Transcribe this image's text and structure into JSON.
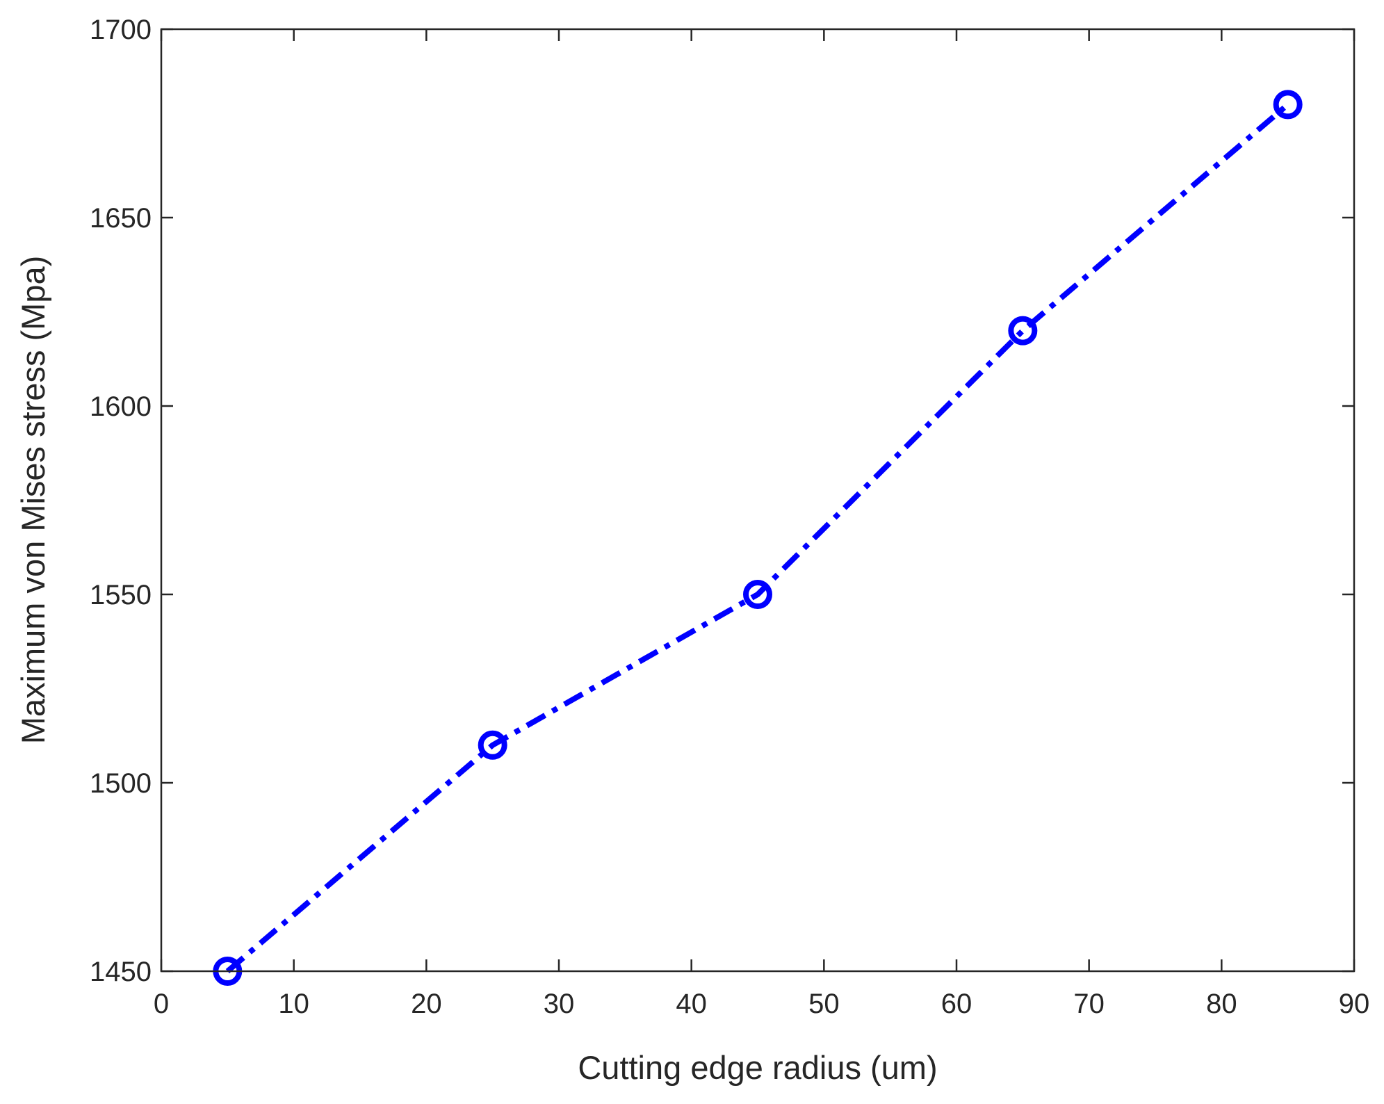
{
  "chart_data": {
    "type": "line",
    "title": "",
    "xlabel": "Cutting edge radius (um)",
    "ylabel": "Maximum von Mises stress (Mpa)",
    "xlim": [
      0,
      90
    ],
    "ylim": [
      1450,
      1700
    ],
    "xticks": [
      "0",
      "10",
      "20",
      "30",
      "40",
      "50",
      "60",
      "70",
      "80",
      "90"
    ],
    "yticks": [
      "1450",
      "1500",
      "1550",
      "1600",
      "1650",
      "1700"
    ],
    "grid": false,
    "legend": "none",
    "series": [
      {
        "color": "#0000ff",
        "line_style": "dash-dot",
        "marker": "circle",
        "x": [
          5,
          25,
          45,
          65,
          85
        ],
        "y": [
          1450,
          1510,
          1550,
          1620,
          1680
        ]
      }
    ]
  }
}
